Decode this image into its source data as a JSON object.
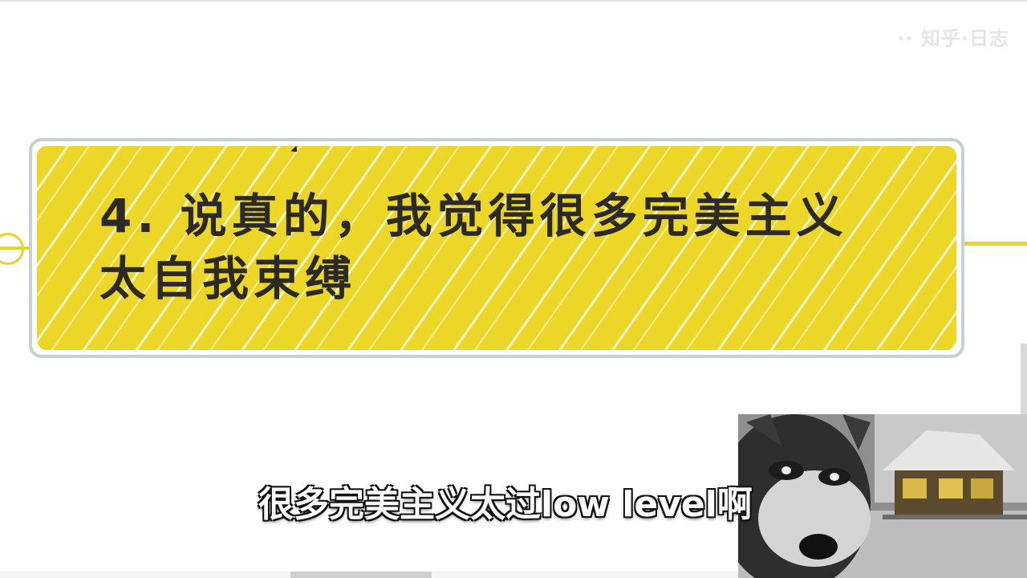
{
  "watermark": {
    "text": "·· 知乎·日志"
  },
  "mindmap": {
    "topic": {
      "line1": "4. 说真的，我觉得很多完美主义",
      "line2": "太自我束缚"
    },
    "connector_color": "#e8d42c",
    "card_color": "#ecd628"
  },
  "video": {
    "subtitle": "很多完美主义太过low level啊",
    "webcam_icon": "dog-webcam-image"
  }
}
